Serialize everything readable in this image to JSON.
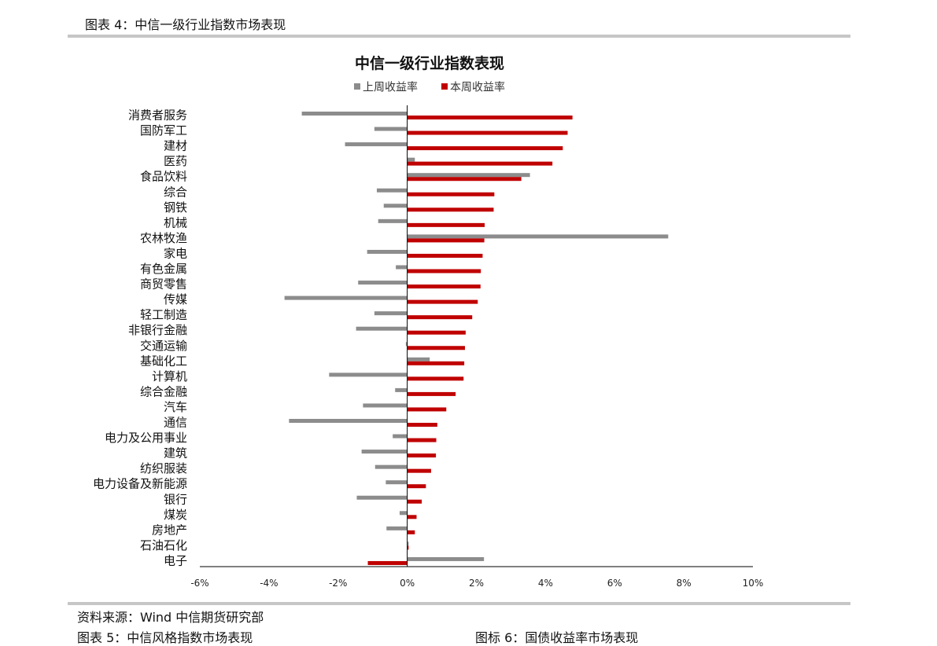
{
  "header": {
    "figure_caption": "图表 4：中信一级行业指数市场表现"
  },
  "footer": {
    "source": "资料来源：Wind 中信期货研究部",
    "next_caption_left": "图表 5：中信风格指数市场表现",
    "next_caption_right": "图标 6：国债收益率市场表现"
  },
  "colors": {
    "prev_week": "#8c8c8c",
    "this_week": "#c00000",
    "rule": "#c6c6c6"
  },
  "chart_data": {
    "type": "bar",
    "orientation": "horizontal",
    "title": "中信一级行业指数表现",
    "legend_position": "top",
    "grid": false,
    "xlim": [
      -6,
      10
    ],
    "x_ticks": [
      -6,
      -4,
      -2,
      0,
      2,
      4,
      6,
      8,
      10
    ],
    "x_tick_labels": [
      "-6%",
      "-4%",
      "-2%",
      "0%",
      "2%",
      "4%",
      "6%",
      "8%",
      "10%"
    ],
    "categories": [
      "消费者服务",
      "国防军工",
      "建材",
      "医药",
      "食品饮料",
      "综合",
      "钢铁",
      "机械",
      "农林牧渔",
      "家电",
      "有色金属",
      "商贸零售",
      "传媒",
      "轻工制造",
      "非银行金融",
      "交通运输",
      "基础化工",
      "计算机",
      "综合金融",
      "汽车",
      "通信",
      "电力及公用事业",
      "建筑",
      "纺织服装",
      "电力设备及新能源",
      "银行",
      "煤炭",
      "房地产",
      "石油石化",
      "电子"
    ],
    "series": [
      {
        "name": "上周收益率",
        "color": "#8c8c8c",
        "values": [
          -3.05,
          -0.95,
          -1.8,
          0.22,
          3.55,
          -0.88,
          -0.68,
          -0.84,
          7.55,
          -1.16,
          -0.33,
          -1.42,
          -3.55,
          -0.95,
          -1.48,
          -0.04,
          0.65,
          -2.26,
          -0.35,
          -1.28,
          -3.42,
          -0.42,
          -1.32,
          -0.93,
          -0.62,
          -1.46,
          -0.22,
          -0.6,
          0.04,
          2.22
        ]
      },
      {
        "name": "本周收益率",
        "color": "#c00000",
        "values": [
          4.78,
          4.64,
          4.5,
          4.2,
          3.3,
          2.52,
          2.5,
          2.24,
          2.23,
          2.18,
          2.13,
          2.12,
          2.04,
          1.88,
          1.69,
          1.67,
          1.65,
          1.63,
          1.4,
          1.13,
          0.87,
          0.84,
          0.83,
          0.69,
          0.54,
          0.42,
          0.27,
          0.22,
          0.04,
          -1.14
        ]
      }
    ]
  }
}
